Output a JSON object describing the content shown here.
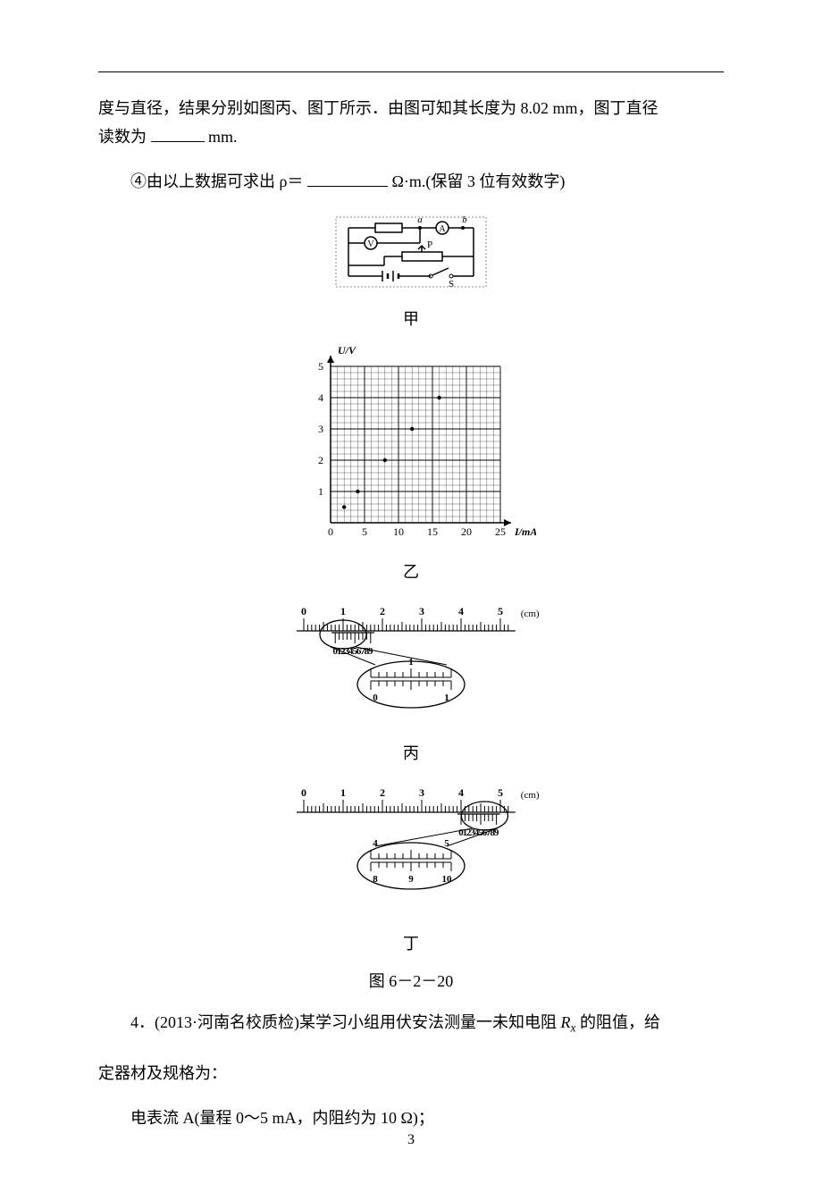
{
  "body": {
    "line1": "度与直径，结果分别如图丙、图丁所示．由图可知其长度为 8.02 mm，图丁直径",
    "line2_a": "读数为",
    "line2_b": "mm.",
    "line3_a": "④由以上数据可求出 ρ＝",
    "line3_b": "Ω·m.(保留 3 位有效数字)"
  },
  "fig_jia": {
    "label": "甲",
    "letters": {
      "a": "a",
      "b": "b",
      "P": "P",
      "S": "S"
    },
    "meters": {
      "A": "A",
      "V": "V"
    },
    "stroke": "#000000",
    "bg": "#ffffff"
  },
  "fig_yi": {
    "label": "乙",
    "ylabel": "U/V",
    "xlabel": "I/mA",
    "xlim": [
      0,
      25
    ],
    "ylim": [
      0,
      5
    ],
    "xtick_step": 5,
    "ytick_step": 1,
    "xticks": [
      "0",
      "5",
      "10",
      "15",
      "20",
      "25"
    ],
    "yticks": [
      "1",
      "2",
      "3",
      "4",
      "5"
    ],
    "points": [
      {
        "x": 2,
        "y": 0.5
      },
      {
        "x": 4,
        "y": 1.0
      },
      {
        "x": 8,
        "y": 2.0
      },
      {
        "x": 12,
        "y": 3.0
      },
      {
        "x": 16,
        "y": 4.0
      }
    ],
    "grid_color": "#000000",
    "bg": "#ffffff",
    "font_size": 12
  },
  "fig_bing": {
    "label": "丙",
    "unit": "(cm)",
    "main_labels": [
      "0",
      "1",
      "2",
      "3",
      "4",
      "5"
    ],
    "vernier_labels": [
      "0",
      "1",
      "2",
      "3",
      "4",
      "5",
      "6",
      "7",
      "8",
      "9"
    ],
    "mag_top": [
      "1"
    ],
    "mag_bot": [
      "0",
      "1"
    ],
    "stroke": "#000000"
  },
  "fig_ding": {
    "label": "丁",
    "unit": "(cm)",
    "main_labels": [
      "0",
      "1",
      "2",
      "3",
      "4",
      "5"
    ],
    "vernier_labels": [
      "0",
      "1",
      "2",
      "3",
      "4",
      "5",
      "6",
      "7",
      "8",
      "9"
    ],
    "mag_top": [
      "4",
      "5"
    ],
    "mag_bot": [
      "8",
      "9",
      "10"
    ],
    "stroke": "#000000"
  },
  "caption": "图 6－2－20",
  "q4": {
    "line1_a": "4．(2013·",
    "line1_b": "河南名校质检",
    "line1_c": ")某学习小组用伏安法测量一未知电阻 ",
    "line1_d": " 的阻值，给",
    "line2": "定器材及规格为：",
    "line3": "电表流 A(量程 0～5 mA，内阻约为 10 Ω)；",
    "Rx_R": "R",
    "Rx_x": "x"
  },
  "page_number": "3"
}
